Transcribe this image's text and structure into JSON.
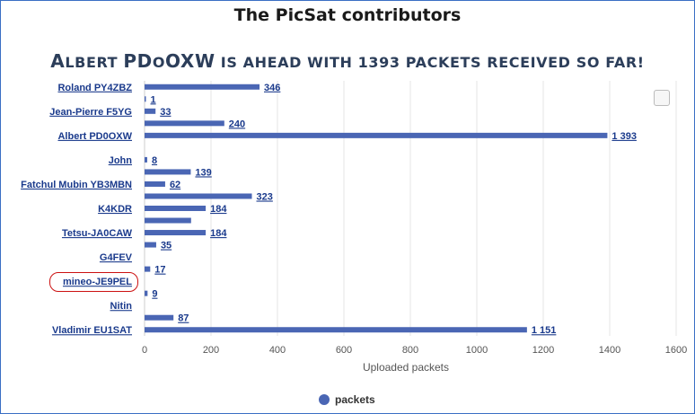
{
  "page": {
    "title": "The PicSat contributors",
    "subtitle_caps": [
      "A",
      "lbert ",
      "PD",
      "o",
      "OXW",
      " is ahead with 1393 packets received so far!"
    ]
  },
  "legend": {
    "label": "packets"
  },
  "colors": {
    "bar": "#4a66b4",
    "grid": "#e6e6e6",
    "highlight": "#cc1111"
  },
  "chart_data": {
    "type": "bar",
    "orientation": "horizontal",
    "title": "The PicSat contributors",
    "subtitle": "Albert PDoOXW is ahead with 1393 packets received so far!",
    "xlabel": "Uploaded packets",
    "xlim": [
      0,
      1600
    ],
    "xticks": [
      0,
      200,
      400,
      600,
      800,
      1000,
      1200,
      1400,
      1600
    ],
    "grid": true,
    "legend_position": "bottom-center",
    "series": [
      {
        "name": "packets"
      }
    ],
    "categories": [
      "Roland PY4ZBZ",
      "",
      "Jean-Pierre F5YG",
      "",
      "Albert PD0OXW",
      "",
      "John",
      "",
      "Fatchul Mubin YB3MBN",
      "",
      "K4KDR",
      "",
      "Tetsu-JA0CAW",
      "",
      "G4FEV",
      "",
      "mineo-JE9PEL",
      "",
      "Nitin",
      "",
      "Vladimir EU1SAT"
    ],
    "values": [
      346,
      1,
      33,
      240,
      1393,
      null,
      8,
      139,
      62,
      323,
      184,
      140,
      184,
      35,
      null,
      17,
      null,
      9,
      null,
      87,
      1151
    ],
    "data_labels": [
      "346",
      "1",
      "33",
      "240",
      "1 393",
      "",
      "8",
      "139",
      "62",
      "323",
      "184",
      "",
      "184",
      "35",
      "",
      "17",
      "",
      "9",
      "",
      "87",
      "1 151"
    ],
    "highlighted_category": "mineo-JE9PEL"
  }
}
